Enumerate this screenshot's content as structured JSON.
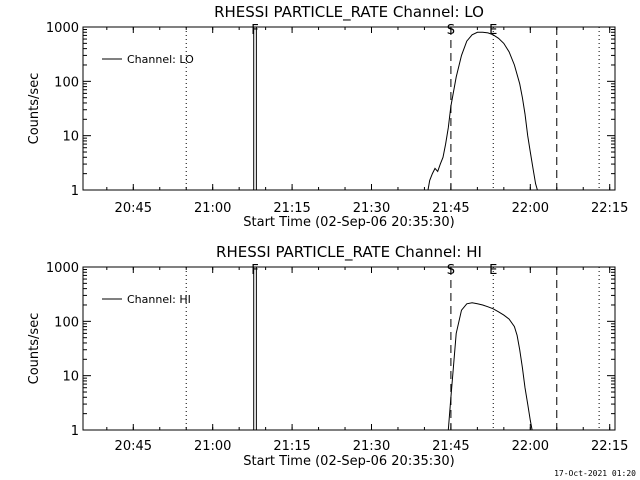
{
  "timestamp": "17-Oct-2021 01:20",
  "chart_data": [
    {
      "type": "line",
      "title": "RHESSI PARTICLE_RATE Channel: LO",
      "xlabel": "Start Time (02-Sep-06 20:35:30)",
      "ylabel": "Counts/sec",
      "y_scale": "log",
      "ylim": [
        1,
        1000
      ],
      "xlim": [
        "20:35:30",
        "22:16"
      ],
      "x_ticks": [
        "20:45",
        "21:00",
        "21:15",
        "21:30",
        "21:45",
        "22:00",
        "22:15"
      ],
      "y_ticks": [
        "1",
        "10",
        "100",
        "1000"
      ],
      "legend": {
        "placement": "top-left",
        "entries": [
          "Channel: LO"
        ]
      },
      "series": [
        {
          "name": "Channel: LO",
          "x": [
            "21:40:40",
            "21:41:00",
            "21:41:30",
            "21:42:00",
            "21:42:30",
            "21:43:00",
            "21:43:30",
            "21:44:00",
            "21:44:30",
            "21:45:00",
            "21:46:00",
            "21:47:00",
            "21:48:00",
            "21:49:00",
            "21:50:00",
            "21:51:00",
            "21:52:00",
            "21:53:00",
            "21:54:00",
            "21:55:00",
            "21:56:00",
            "21:57:00",
            "21:58:00",
            "21:58:30",
            "21:59:00",
            "21:59:30",
            "22:00:00",
            "22:00:30",
            "22:01:00",
            "22:01:20"
          ],
          "y": [
            1,
            1.5,
            2,
            2.5,
            2.2,
            3,
            4,
            7,
            14,
            35,
            120,
            300,
            550,
            720,
            800,
            800,
            780,
            720,
            620,
            500,
            350,
            200,
            90,
            50,
            25,
            10,
            5,
            2.5,
            1.3,
            1
          ]
        }
      ],
      "markers": [
        {
          "label": "F",
          "x": "21:08:00",
          "style": "solid"
        },
        {
          "label": "S",
          "x": "21:45:00",
          "style": "dashed"
        },
        {
          "label": "E",
          "x": "21:53:00",
          "style": "none"
        }
      ],
      "vlines": [
        {
          "x": "20:55:00",
          "style": "dotted"
        },
        {
          "x": "21:07:45",
          "style": "solid"
        },
        {
          "x": "21:08:15",
          "style": "solid"
        },
        {
          "x": "21:45:00",
          "style": "dashed"
        },
        {
          "x": "21:53:00",
          "style": "dotted"
        },
        {
          "x": "22:05:00",
          "style": "dashed"
        },
        {
          "x": "22:13:00",
          "style": "dotted"
        }
      ]
    },
    {
      "type": "line",
      "title": "RHESSI PARTICLE_RATE Channel: HI",
      "xlabel": "Start Time (02-Sep-06 20:35:30)",
      "ylabel": "Counts/sec",
      "y_scale": "log",
      "ylim": [
        1,
        1000
      ],
      "xlim": [
        "20:35:30",
        "22:16"
      ],
      "x_ticks": [
        "20:45",
        "21:00",
        "21:15",
        "21:30",
        "21:45",
        "22:00",
        "22:15"
      ],
      "y_ticks": [
        "1",
        "10",
        "100",
        "1000"
      ],
      "legend": {
        "placement": "top-left",
        "entries": [
          "Channel: HI"
        ]
      },
      "series": [
        {
          "name": "Channel: HI",
          "x": [
            "21:44:30",
            "21:45:00",
            "21:45:30",
            "21:46:00",
            "21:47:00",
            "21:48:00",
            "21:49:00",
            "21:50:00",
            "21:51:00",
            "21:52:00",
            "21:53:00",
            "21:54:00",
            "21:55:00",
            "21:56:00",
            "21:57:00",
            "21:57:30",
            "21:58:00",
            "21:58:30",
            "21:59:00",
            "21:59:30",
            "22:00:00",
            "22:00:20"
          ],
          "y": [
            1,
            4,
            15,
            60,
            160,
            210,
            220,
            210,
            200,
            185,
            170,
            150,
            130,
            110,
            80,
            55,
            30,
            14,
            6,
            3,
            1.5,
            1
          ]
        }
      ],
      "markers": [
        {
          "label": "F",
          "x": "21:08:00",
          "style": "solid"
        },
        {
          "label": "S",
          "x": "21:45:00",
          "style": "dashed"
        },
        {
          "label": "E",
          "x": "21:53:00",
          "style": "none"
        }
      ],
      "vlines": [
        {
          "x": "20:55:00",
          "style": "dotted"
        },
        {
          "x": "21:07:45",
          "style": "solid"
        },
        {
          "x": "21:08:15",
          "style": "solid"
        },
        {
          "x": "21:45:00",
          "style": "dashed"
        },
        {
          "x": "21:53:00",
          "style": "dotted"
        },
        {
          "x": "22:05:00",
          "style": "dashed"
        },
        {
          "x": "22:13:00",
          "style": "dotted"
        }
      ]
    }
  ]
}
